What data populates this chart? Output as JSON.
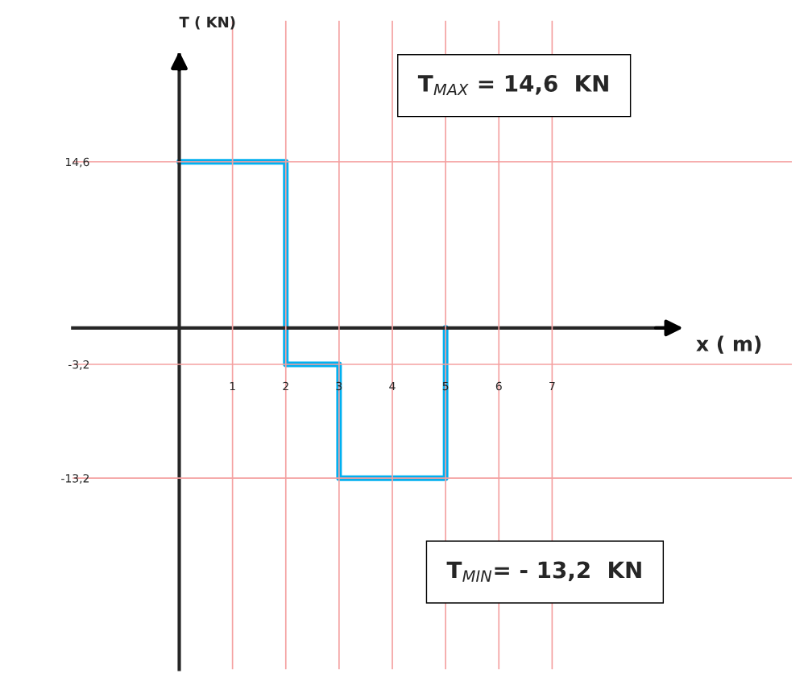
{
  "chart_data": {
    "type": "step",
    "xlabel": "x ( m)",
    "ylabel": "T ( KN)",
    "x": [
      0,
      2,
      3,
      5
    ],
    "series": [
      {
        "color": "#00b0f0",
        "values": [
          14.6,
          -3.2,
          -13.2,
          0
        ]
      }
    ],
    "xlim": [
      -2,
      11.5
    ],
    "ylim": [
      -30,
      27
    ],
    "xticks": [
      1,
      2,
      3,
      4,
      5,
      6,
      7
    ],
    "yticks": [
      {
        "value": 14.6,
        "label": "14,6"
      },
      {
        "value": -3.2,
        "label": "-3,2"
      },
      {
        "value": -13.2,
        "label": "-13,2"
      }
    ],
    "grid": true,
    "annotations": [
      "T$_{MAX}$ = 14,6  KN",
      "T$_{MIN}$= - 13,2  KN"
    ]
  }
}
